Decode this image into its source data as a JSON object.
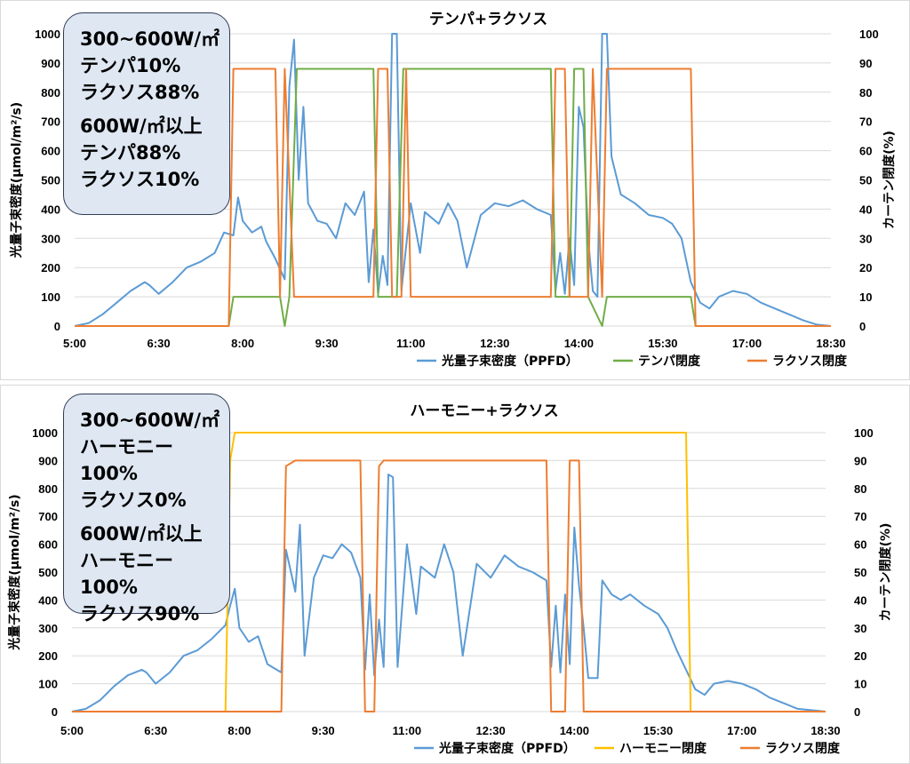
{
  "chart_data": [
    {
      "type": "line",
      "title": "テンパ+ラクソス",
      "ylabel_left": "光量子束密度(μmol/m²/s)",
      "ylabel_right": "カーテン閉度(%)",
      "ylim_left": [
        0,
        1000
      ],
      "ylim_right": [
        0,
        100
      ],
      "yticks_left": [
        "0",
        "100",
        "200",
        "300",
        "400",
        "500",
        "600",
        "700",
        "800",
        "900",
        "1000"
      ],
      "yticks_right": [
        "0",
        "10",
        "20",
        "30",
        "40",
        "50",
        "60",
        "70",
        "80",
        "90",
        "100"
      ],
      "xticks": [
        "5:00",
        "6:30",
        "8:00",
        "9:30",
        "11:00",
        "12:30",
        "14:00",
        "15:30",
        "17:00",
        "18:30"
      ],
      "xlim_hours": [
        5,
        18.5
      ],
      "grid": "horizontal",
      "legend_position": "bottom",
      "annotation": [
        "300~600W/㎡",
        "テンパ10%",
        "ラクソス88%",
        "600W/㎡以上",
        "テンパ88%",
        "ラクソス10%"
      ],
      "series": [
        {
          "name": "光量子束密度（PPFD）",
          "axis": "left",
          "color": "#5b9bd5",
          "points": [
            [
              "5:00",
              0
            ],
            [
              "5:15",
              10
            ],
            [
              "5:30",
              40
            ],
            [
              "5:45",
              80
            ],
            [
              "6:00",
              120
            ],
            [
              "6:15",
              150
            ],
            [
              "6:20",
              140
            ],
            [
              "6:30",
              110
            ],
            [
              "6:45",
              150
            ],
            [
              "7:00",
              200
            ],
            [
              "7:15",
              220
            ],
            [
              "7:30",
              250
            ],
            [
              "7:40",
              320
            ],
            [
              "7:50",
              310
            ],
            [
              "7:55",
              440
            ],
            [
              "8:00",
              360
            ],
            [
              "8:10",
              320
            ],
            [
              "8:20",
              340
            ],
            [
              "8:25",
              290
            ],
            [
              "8:35",
              230
            ],
            [
              "8:45",
              160
            ],
            [
              "8:50",
              820
            ],
            [
              "8:55",
              980
            ],
            [
              "9:00",
              500
            ],
            [
              "9:05",
              750
            ],
            [
              "9:10",
              420
            ],
            [
              "9:20",
              360
            ],
            [
              "9:30",
              350
            ],
            [
              "9:40",
              300
            ],
            [
              "9:50",
              420
            ],
            [
              "10:00",
              380
            ],
            [
              "10:10",
              460
            ],
            [
              "10:15",
              150
            ],
            [
              "10:20",
              330
            ],
            [
              "10:25",
              110
            ],
            [
              "10:30",
              240
            ],
            [
              "10:35",
              140
            ],
            [
              "10:40",
              1000
            ],
            [
              "10:45",
              1000
            ],
            [
              "10:50",
              120
            ],
            [
              "11:00",
              420
            ],
            [
              "11:10",
              250
            ],
            [
              "11:15",
              390
            ],
            [
              "11:30",
              350
            ],
            [
              "11:40",
              420
            ],
            [
              "11:50",
              360
            ],
            [
              "12:00",
              200
            ],
            [
              "12:15",
              380
            ],
            [
              "12:30",
              420
            ],
            [
              "12:45",
              410
            ],
            [
              "13:00",
              430
            ],
            [
              "13:15",
              400
            ],
            [
              "13:30",
              380
            ],
            [
              "13:35",
              120
            ],
            [
              "13:40",
              250
            ],
            [
              "13:45",
              110
            ],
            [
              "13:50",
              300
            ],
            [
              "13:55",
              140
            ],
            [
              "14:00",
              750
            ],
            [
              "14:05",
              680
            ],
            [
              "14:10",
              300
            ],
            [
              "14:15",
              120
            ],
            [
              "14:20",
              100
            ],
            [
              "14:25",
              1000
            ],
            [
              "14:30",
              1000
            ],
            [
              "14:35",
              580
            ],
            [
              "14:45",
              450
            ],
            [
              "15:00",
              420
            ],
            [
              "15:15",
              380
            ],
            [
              "15:30",
              370
            ],
            [
              "15:40",
              350
            ],
            [
              "15:50",
              300
            ],
            [
              "16:00",
              150
            ],
            [
              "16:10",
              80
            ],
            [
              "16:20",
              60
            ],
            [
              "16:30",
              100
            ],
            [
              "16:45",
              120
            ],
            [
              "17:00",
              110
            ],
            [
              "17:15",
              80
            ],
            [
              "17:30",
              60
            ],
            [
              "17:45",
              40
            ],
            [
              "18:00",
              20
            ],
            [
              "18:15",
              5
            ],
            [
              "18:30",
              0
            ]
          ]
        },
        {
          "name": "テンパ閉度",
          "axis": "right",
          "color": "#70ad47",
          "points": [
            [
              "5:00",
              0
            ],
            [
              "7:45",
              0
            ],
            [
              "7:50",
              10
            ],
            [
              "8:40",
              10
            ],
            [
              "8:45",
              0
            ],
            [
              "8:50",
              10
            ],
            [
              "8:58",
              88
            ],
            [
              "10:20",
              88
            ],
            [
              "10:25",
              10
            ],
            [
              "10:45",
              10
            ],
            [
              "10:52",
              88
            ],
            [
              "13:30",
              88
            ],
            [
              "13:35",
              10
            ],
            [
              "13:50",
              10
            ],
            [
              "13:55",
              88
            ],
            [
              "14:05",
              88
            ],
            [
              "14:10",
              10
            ],
            [
              "14:25",
              0
            ],
            [
              "14:30",
              10
            ],
            [
              "16:00",
              10
            ],
            [
              "16:05",
              0
            ],
            [
              "18:30",
              0
            ]
          ]
        },
        {
          "name": "ラクソス閉度",
          "axis": "right",
          "color": "#ed7d31",
          "points": [
            [
              "5:00",
              0
            ],
            [
              "7:45",
              0
            ],
            [
              "7:50",
              88
            ],
            [
              "8:35",
              88
            ],
            [
              "8:40",
              10
            ],
            [
              "8:45",
              88
            ],
            [
              "8:55",
              10
            ],
            [
              "10:20",
              10
            ],
            [
              "10:25",
              88
            ],
            [
              "10:35",
              88
            ],
            [
              "10:40",
              10
            ],
            [
              "10:50",
              10
            ],
            [
              "10:55",
              88
            ],
            [
              "11:00",
              10
            ],
            [
              "13:30",
              10
            ],
            [
              "13:35",
              88
            ],
            [
              "13:45",
              88
            ],
            [
              "13:50",
              10
            ],
            [
              "14:10",
              10
            ],
            [
              "14:15",
              88
            ],
            [
              "14:25",
              10
            ],
            [
              "14:30",
              88
            ],
            [
              "16:00",
              88
            ],
            [
              "16:05",
              0
            ],
            [
              "18:30",
              0
            ]
          ]
        }
      ]
    },
    {
      "type": "line",
      "title": "ハーモニー+ラクソス",
      "ylabel_left": "光量子束密度(μmol/m²/s)",
      "ylabel_right": "カーテン閉度(%)",
      "ylim_left": [
        0,
        1000
      ],
      "ylim_right": [
        0,
        100
      ],
      "yticks_left": [
        "0",
        "100",
        "200",
        "300",
        "400",
        "500",
        "600",
        "700",
        "800",
        "900",
        "1000"
      ],
      "yticks_right": [
        "0",
        "10",
        "20",
        "30",
        "40",
        "50",
        "60",
        "70",
        "80",
        "90",
        "100"
      ],
      "xticks": [
        "5:00",
        "6:30",
        "8:00",
        "9:30",
        "11:00",
        "12:30",
        "14:00",
        "15:30",
        "17:00",
        "18:30"
      ],
      "xlim_hours": [
        5,
        18.5
      ],
      "grid": "horizontal",
      "legend_position": "bottom",
      "annotation": [
        "300~600W/㎡",
        "ハーモニー",
        "100%",
        "ラクソス0%",
        "600W/㎡以上",
        "ハーモニー",
        "100%",
        "ラクソス90%"
      ],
      "series": [
        {
          "name": "光量子束密度（PPFD）",
          "axis": "left",
          "color": "#5b9bd5",
          "points": [
            [
              "5:00",
              0
            ],
            [
              "5:15",
              10
            ],
            [
              "5:30",
              40
            ],
            [
              "5:45",
              90
            ],
            [
              "6:00",
              130
            ],
            [
              "6:15",
              150
            ],
            [
              "6:20",
              140
            ],
            [
              "6:30",
              100
            ],
            [
              "6:45",
              140
            ],
            [
              "7:00",
              200
            ],
            [
              "7:15",
              220
            ],
            [
              "7:30",
              260
            ],
            [
              "7:45",
              310
            ],
            [
              "7:50",
              380
            ],
            [
              "7:55",
              440
            ],
            [
              "8:00",
              300
            ],
            [
              "8:10",
              250
            ],
            [
              "8:20",
              270
            ],
            [
              "8:30",
              170
            ],
            [
              "8:45",
              140
            ],
            [
              "8:50",
              580
            ],
            [
              "9:00",
              430
            ],
            [
              "9:05",
              670
            ],
            [
              "9:10",
              200
            ],
            [
              "9:20",
              480
            ],
            [
              "9:30",
              560
            ],
            [
              "9:40",
              550
            ],
            [
              "9:50",
              600
            ],
            [
              "10:00",
              570
            ],
            [
              "10:10",
              480
            ],
            [
              "10:15",
              150
            ],
            [
              "10:20",
              420
            ],
            [
              "10:25",
              130
            ],
            [
              "10:30",
              330
            ],
            [
              "10:35",
              160
            ],
            [
              "10:40",
              850
            ],
            [
              "10:45",
              840
            ],
            [
              "10:50",
              160
            ],
            [
              "11:00",
              600
            ],
            [
              "11:10",
              350
            ],
            [
              "11:15",
              520
            ],
            [
              "11:30",
              480
            ],
            [
              "11:40",
              600
            ],
            [
              "11:50",
              500
            ],
            [
              "12:00",
              200
            ],
            [
              "12:15",
              530
            ],
            [
              "12:30",
              480
            ],
            [
              "12:45",
              560
            ],
            [
              "13:00",
              520
            ],
            [
              "13:15",
              500
            ],
            [
              "13:30",
              470
            ],
            [
              "13:35",
              160
            ],
            [
              "13:40",
              380
            ],
            [
              "13:45",
              140
            ],
            [
              "13:50",
              420
            ],
            [
              "13:55",
              170
            ],
            [
              "14:00",
              660
            ],
            [
              "14:05",
              450
            ],
            [
              "14:10",
              300
            ],
            [
              "14:15",
              120
            ],
            [
              "14:25",
              120
            ],
            [
              "14:30",
              470
            ],
            [
              "14:40",
              420
            ],
            [
              "14:50",
              400
            ],
            [
              "15:00",
              420
            ],
            [
              "15:15",
              380
            ],
            [
              "15:30",
              350
            ],
            [
              "15:40",
              300
            ],
            [
              "15:50",
              220
            ],
            [
              "16:00",
              150
            ],
            [
              "16:10",
              80
            ],
            [
              "16:20",
              60
            ],
            [
              "16:30",
              100
            ],
            [
              "16:45",
              110
            ],
            [
              "17:00",
              100
            ],
            [
              "17:15",
              80
            ],
            [
              "17:30",
              50
            ],
            [
              "17:45",
              30
            ],
            [
              "18:00",
              10
            ],
            [
              "18:30",
              0
            ]
          ]
        },
        {
          "name": "ハーモニー閉度",
          "axis": "right",
          "color": "#ffc000",
          "points": [
            [
              "5:00",
              0
            ],
            [
              "7:45",
              0
            ],
            [
              "7:50",
              90
            ],
            [
              "7:55",
              100
            ],
            [
              "16:00",
              100
            ],
            [
              "16:05",
              0
            ],
            [
              "18:30",
              0
            ]
          ]
        },
        {
          "name": "ラクソス閉度",
          "axis": "right",
          "color": "#ed7d31",
          "points": [
            [
              "5:00",
              0
            ],
            [
              "8:45",
              0
            ],
            [
              "8:50",
              88
            ],
            [
              "9:00",
              90
            ],
            [
              "10:10",
              90
            ],
            [
              "10:15",
              0
            ],
            [
              "10:25",
              0
            ],
            [
              "10:30",
              88
            ],
            [
              "10:35",
              90
            ],
            [
              "13:30",
              90
            ],
            [
              "13:35",
              0
            ],
            [
              "13:50",
              0
            ],
            [
              "13:55",
              90
            ],
            [
              "14:05",
              90
            ],
            [
              "14:10",
              0
            ],
            [
              "18:30",
              0
            ]
          ]
        }
      ]
    }
  ]
}
